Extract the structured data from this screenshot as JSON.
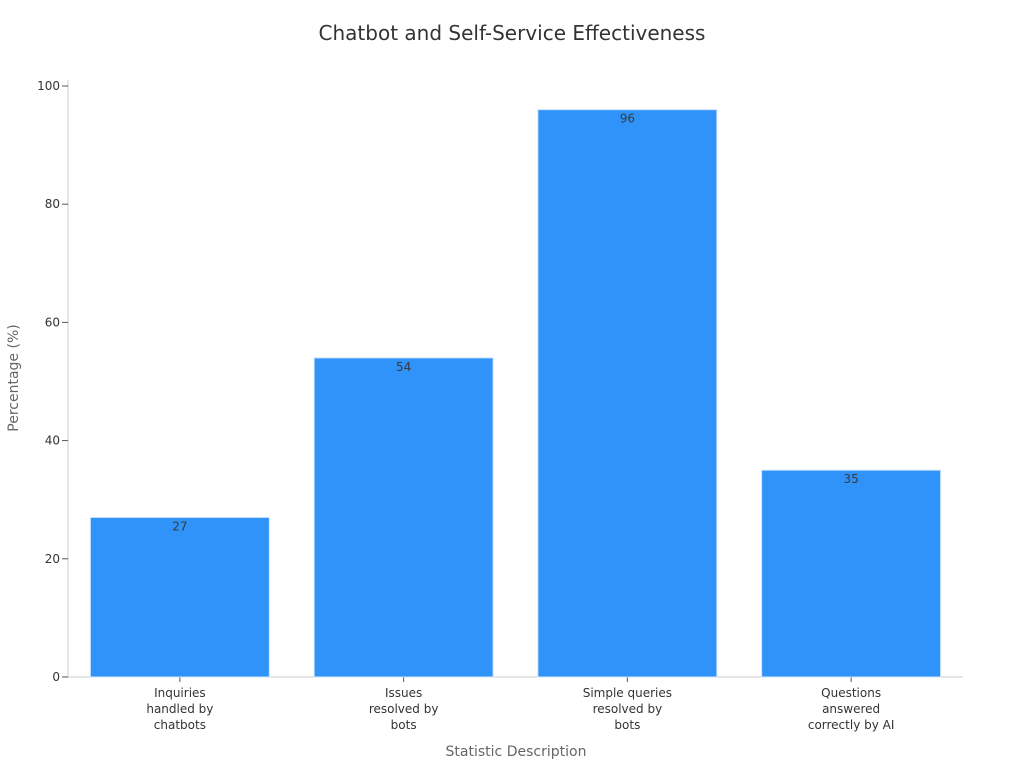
{
  "chart_data": {
    "type": "bar",
    "title": "Chatbot and Self-Service Effectiveness",
    "xlabel": "Statistic Description",
    "ylabel": "Percentage (%)",
    "categories": [
      [
        "Inquiries",
        "handled by",
        "chatbots"
      ],
      [
        "Issues",
        "resolved by",
        "bots"
      ],
      [
        "Simple queries",
        "resolved by",
        "bots"
      ],
      [
        "Questions",
        "answered",
        "correctly by AI"
      ]
    ],
    "values": [
      27,
      54,
      96,
      35
    ],
    "data_labels": [
      "27",
      "54",
      "96",
      "35"
    ],
    "ylim": [
      0,
      100
    ],
    "yticks": [
      0,
      20,
      40,
      60,
      80,
      100
    ],
    "grid": false,
    "bar_color": "#2f93fa"
  }
}
